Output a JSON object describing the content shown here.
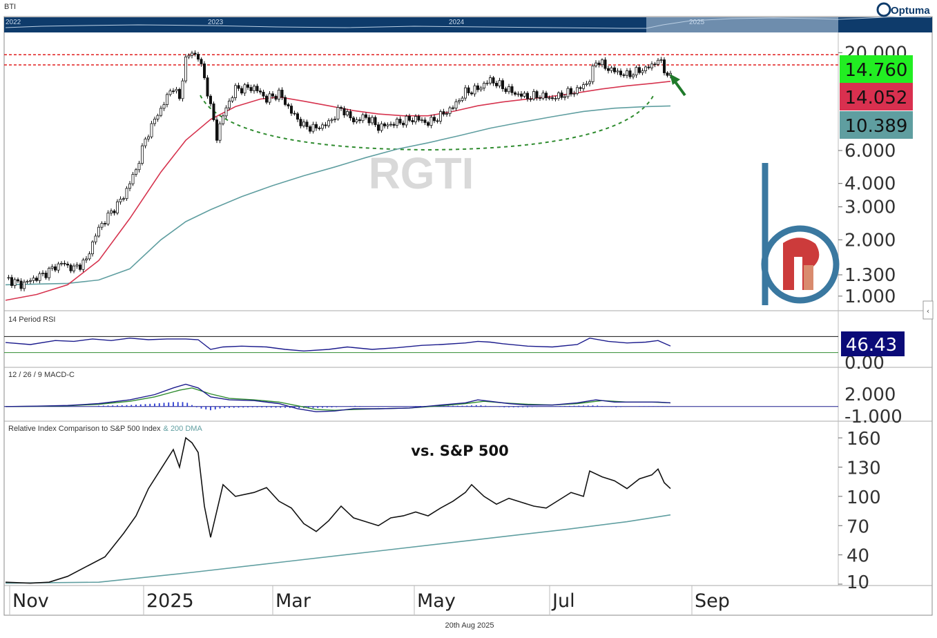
{
  "app": {
    "symbol_label": "BTI",
    "brand": "Optuma",
    "footer_date": "20th Aug 2025"
  },
  "navigator": {
    "year_labels": [
      "2022",
      "2023",
      "2024",
      "2025"
    ]
  },
  "colors": {
    "price_up": "#ffffff",
    "price_down": "#111111",
    "ma50": "#d6334e",
    "ma200": "#5f9ea0",
    "resistance": "#e01b1b",
    "cup": "#2e8b2e",
    "arrow": "#1f7a2a",
    "rsi": "#1a1a8c",
    "macd": "#1a1a8c",
    "signal": "#2e8b2e",
    "hist": "#2a3ad0",
    "relative": "#111111",
    "relative_ma": "#5f9ea0",
    "nav_bg": "#0e3b6b",
    "logo_blue": "#3a78a0",
    "logo_red": "#cc3b3b"
  },
  "chart_data": [
    {
      "type": "candlestick",
      "name": "Price",
      "watermark": "RGTI",
      "scale": "log",
      "ylim": [
        0.85,
        25
      ],
      "y_ticks": [
        "20.000",
        "6.000",
        "4.000",
        "3.000",
        "2.000",
        "1.300",
        "1.000"
      ],
      "price_badges": [
        {
          "label": "14.760",
          "color": "#22ee22"
        },
        {
          "label": "14.052",
          "color": "#d9304f"
        },
        {
          "label": "10.389",
          "color": "#5f9ea0"
        }
      ],
      "resistance_levels": [
        19.5,
        17.2
      ],
      "x_ticks": [
        "Nov",
        "2025",
        "Mar",
        "May",
        "Jul",
        "Sep"
      ],
      "close_path": [
        [
          0,
          1.25
        ],
        [
          5,
          1.15
        ],
        [
          12,
          1.3
        ],
        [
          18,
          1.5
        ],
        [
          22,
          1.4
        ],
        [
          26,
          1.55
        ],
        [
          30,
          2.3
        ],
        [
          34,
          2.8
        ],
        [
          38,
          3.4
        ],
        [
          42,
          4.7
        ],
        [
          46,
          7.5
        ],
        [
          50,
          10.0
        ],
        [
          54,
          13.2
        ],
        [
          56,
          11.2
        ],
        [
          58,
          18.5
        ],
        [
          60,
          20.0
        ],
        [
          62,
          19.0
        ],
        [
          66,
          10.2
        ],
        [
          68,
          7.1
        ],
        [
          70,
          9.2
        ],
        [
          74,
          12.8
        ],
        [
          80,
          13.0
        ],
        [
          84,
          11.3
        ],
        [
          88,
          12.1
        ],
        [
          92,
          9.6
        ],
        [
          96,
          8.1
        ],
        [
          100,
          7.9
        ],
        [
          104,
          8.4
        ],
        [
          108,
          10.1
        ],
        [
          112,
          8.6
        ],
        [
          116,
          9.1
        ],
        [
          120,
          8.0
        ],
        [
          124,
          8.3
        ],
        [
          128,
          8.6
        ],
        [
          132,
          8.9
        ],
        [
          136,
          8.4
        ],
        [
          140,
          9.2
        ],
        [
          144,
          10.2
        ],
        [
          148,
          12.3
        ],
        [
          152,
          12.8
        ],
        [
          156,
          14.3
        ],
        [
          160,
          13.1
        ],
        [
          164,
          12.1
        ],
        [
          168,
          11.6
        ],
        [
          172,
          11.8
        ],
        [
          176,
          11.4
        ],
        [
          180,
          12.0
        ],
        [
          184,
          12.6
        ],
        [
          188,
          14.2
        ],
        [
          190,
          18.2
        ],
        [
          194,
          16.4
        ],
        [
          198,
          15.5
        ],
        [
          200,
          15.2
        ],
        [
          204,
          16.0
        ],
        [
          208,
          17.0
        ],
        [
          210,
          18.5
        ],
        [
          212,
          16.2
        ],
        [
          214,
          14.76
        ]
      ],
      "ma50_path": [
        [
          0,
          0.95
        ],
        [
          10,
          1.02
        ],
        [
          20,
          1.15
        ],
        [
          30,
          1.55
        ],
        [
          40,
          2.6
        ],
        [
          50,
          4.6
        ],
        [
          58,
          6.8
        ],
        [
          66,
          8.8
        ],
        [
          74,
          10.3
        ],
        [
          82,
          11.3
        ],
        [
          88,
          11.6
        ],
        [
          96,
          11.0
        ],
        [
          104,
          10.4
        ],
        [
          112,
          9.8
        ],
        [
          120,
          9.4
        ],
        [
          128,
          9.2
        ],
        [
          136,
          9.2
        ],
        [
          144,
          9.7
        ],
        [
          152,
          10.4
        ],
        [
          160,
          10.9
        ],
        [
          168,
          11.3
        ],
        [
          176,
          11.7
        ],
        [
          184,
          12.2
        ],
        [
          192,
          12.8
        ],
        [
          200,
          13.3
        ],
        [
          208,
          13.7
        ],
        [
          214,
          14.052
        ]
      ],
      "ma200_path": [
        [
          0,
          1.15
        ],
        [
          20,
          1.17
        ],
        [
          30,
          1.22
        ],
        [
          40,
          1.4
        ],
        [
          50,
          2.0
        ],
        [
          58,
          2.5
        ],
        [
          66,
          2.9
        ],
        [
          76,
          3.4
        ],
        [
          86,
          3.9
        ],
        [
          96,
          4.4
        ],
        [
          106,
          4.9
        ],
        [
          116,
          5.5
        ],
        [
          126,
          6.1
        ],
        [
          136,
          6.6
        ],
        [
          146,
          7.2
        ],
        [
          156,
          7.9
        ],
        [
          166,
          8.5
        ],
        [
          176,
          9.1
        ],
        [
          186,
          9.7
        ],
        [
          196,
          10.1
        ],
        [
          206,
          10.3
        ],
        [
          214,
          10.389
        ]
      ]
    },
    {
      "type": "line",
      "name": "14 Period RSI",
      "series_name": "RSI",
      "ylim": [
        0,
        100
      ],
      "y_ticks": [
        "0.00"
      ],
      "badge": "46.43",
      "upper_level": 70,
      "lower_level": 30,
      "path": [
        [
          0,
          55
        ],
        [
          8,
          50
        ],
        [
          16,
          60
        ],
        [
          22,
          58
        ],
        [
          28,
          64
        ],
        [
          34,
          60
        ],
        [
          40,
          66
        ],
        [
          46,
          62
        ],
        [
          52,
          64
        ],
        [
          58,
          64
        ],
        [
          62,
          62
        ],
        [
          66,
          38
        ],
        [
          70,
          44
        ],
        [
          76,
          46
        ],
        [
          84,
          44
        ],
        [
          90,
          38
        ],
        [
          96,
          34
        ],
        [
          104,
          38
        ],
        [
          110,
          44
        ],
        [
          118,
          38
        ],
        [
          126,
          42
        ],
        [
          134,
          48
        ],
        [
          140,
          50
        ],
        [
          148,
          54
        ],
        [
          152,
          58
        ],
        [
          156,
          56
        ],
        [
          160,
          52
        ],
        [
          168,
          46
        ],
        [
          176,
          44
        ],
        [
          184,
          50
        ],
        [
          188,
          66
        ],
        [
          194,
          58
        ],
        [
          200,
          54
        ],
        [
          206,
          56
        ],
        [
          210,
          60
        ],
        [
          214,
          46.43
        ]
      ]
    },
    {
      "type": "line",
      "name": "12 / 26 / 9 MACD-C",
      "ylim": [
        -1.6,
        3.6
      ],
      "y_ticks": [
        "2.000",
        "-1.000"
      ],
      "macd_path": [
        [
          0,
          0.0
        ],
        [
          10,
          0.05
        ],
        [
          20,
          0.15
        ],
        [
          30,
          0.4
        ],
        [
          40,
          0.9
        ],
        [
          48,
          1.6
        ],
        [
          54,
          2.5
        ],
        [
          58,
          3.0
        ],
        [
          62,
          2.5
        ],
        [
          66,
          1.3
        ],
        [
          72,
          0.9
        ],
        [
          80,
          0.8
        ],
        [
          88,
          0.4
        ],
        [
          94,
          -0.3
        ],
        [
          100,
          -0.7
        ],
        [
          106,
          -0.6
        ],
        [
          112,
          -0.3
        ],
        [
          120,
          -0.3
        ],
        [
          130,
          -0.2
        ],
        [
          140,
          0.2
        ],
        [
          148,
          0.5
        ],
        [
          152,
          0.9
        ],
        [
          156,
          0.7
        ],
        [
          162,
          0.4
        ],
        [
          168,
          0.2
        ],
        [
          176,
          0.2
        ],
        [
          184,
          0.5
        ],
        [
          190,
          0.9
        ],
        [
          196,
          0.6
        ],
        [
          204,
          0.6
        ],
        [
          210,
          0.6
        ],
        [
          214,
          0.5
        ]
      ],
      "signal_path": [
        [
          0,
          0.0
        ],
        [
          10,
          0.03
        ],
        [
          20,
          0.1
        ],
        [
          30,
          0.3
        ],
        [
          40,
          0.7
        ],
        [
          48,
          1.3
        ],
        [
          56,
          2.2
        ],
        [
          60,
          2.5
        ],
        [
          66,
          1.7
        ],
        [
          72,
          1.1
        ],
        [
          80,
          0.9
        ],
        [
          88,
          0.6
        ],
        [
          94,
          0.1
        ],
        [
          100,
          -0.4
        ],
        [
          106,
          -0.5
        ],
        [
          112,
          -0.4
        ],
        [
          120,
          -0.3
        ],
        [
          130,
          -0.2
        ],
        [
          140,
          0.1
        ],
        [
          148,
          0.4
        ],
        [
          154,
          0.7
        ],
        [
          160,
          0.5
        ],
        [
          168,
          0.3
        ],
        [
          176,
          0.2
        ],
        [
          184,
          0.4
        ],
        [
          192,
          0.8
        ],
        [
          200,
          0.6
        ],
        [
          208,
          0.6
        ],
        [
          214,
          0.5
        ]
      ],
      "hist_path": [
        [
          30,
          0.1
        ],
        [
          40,
          0.2
        ],
        [
          48,
          0.4
        ],
        [
          54,
          0.6
        ],
        [
          58,
          0.6
        ],
        [
          62,
          -0.2
        ],
        [
          66,
          -0.5
        ],
        [
          70,
          -0.2
        ],
        [
          80,
          -0.1
        ],
        [
          94,
          -0.2
        ],
        [
          100,
          -0.2
        ],
        [
          106,
          -0.1
        ],
        [
          112,
          0.1
        ],
        [
          120,
          -0.05
        ],
        [
          130,
          0.05
        ],
        [
          140,
          0.1
        ],
        [
          148,
          0.1
        ],
        [
          152,
          0.2
        ],
        [
          160,
          -0.1
        ],
        [
          168,
          -0.1
        ],
        [
          176,
          0.05
        ],
        [
          184,
          0.1
        ],
        [
          190,
          0.15
        ],
        [
          196,
          -0.1
        ],
        [
          204,
          0.05
        ],
        [
          214,
          0.05
        ]
      ]
    },
    {
      "type": "line",
      "name": "Relative Index Comparison to S&P 500 Index",
      "ma_label": "& 200 DMA",
      "annotation": "vs. S&P 500",
      "ylim": [
        10,
        170
      ],
      "y_ticks": [
        "160",
        "130",
        "100",
        "70",
        "40",
        "10"
      ],
      "path": [
        [
          0,
          12
        ],
        [
          8,
          11
        ],
        [
          14,
          12
        ],
        [
          20,
          18
        ],
        [
          26,
          28
        ],
        [
          32,
          38
        ],
        [
          38,
          62
        ],
        [
          42,
          80
        ],
        [
          46,
          108
        ],
        [
          50,
          128
        ],
        [
          54,
          148
        ],
        [
          56,
          130
        ],
        [
          58,
          160
        ],
        [
          60,
          155
        ],
        [
          62,
          145
        ],
        [
          64,
          90
        ],
        [
          66,
          58
        ],
        [
          68,
          85
        ],
        [
          70,
          112
        ],
        [
          74,
          100
        ],
        [
          80,
          104
        ],
        [
          84,
          109
        ],
        [
          88,
          95
        ],
        [
          92,
          88
        ],
        [
          96,
          72
        ],
        [
          100,
          64
        ],
        [
          104,
          75
        ],
        [
          108,
          90
        ],
        [
          112,
          78
        ],
        [
          116,
          74
        ],
        [
          120,
          70
        ],
        [
          124,
          78
        ],
        [
          128,
          80
        ],
        [
          132,
          84
        ],
        [
          136,
          80
        ],
        [
          140,
          88
        ],
        [
          144,
          95
        ],
        [
          148,
          104
        ],
        [
          150,
          112
        ],
        [
          154,
          100
        ],
        [
          158,
          92
        ],
        [
          162,
          98
        ],
        [
          166,
          94
        ],
        [
          170,
          90
        ],
        [
          174,
          88
        ],
        [
          178,
          96
        ],
        [
          182,
          104
        ],
        [
          186,
          100
        ],
        [
          188,
          126
        ],
        [
          192,
          120
        ],
        [
          196,
          116
        ],
        [
          200,
          108
        ],
        [
          204,
          118
        ],
        [
          208,
          122
        ],
        [
          210,
          128
        ],
        [
          212,
          114
        ],
        [
          214,
          108
        ]
      ],
      "ma_path": [
        [
          0,
          11
        ],
        [
          30,
          12
        ],
        [
          60,
          22
        ],
        [
          90,
          33
        ],
        [
          120,
          44
        ],
        [
          150,
          55
        ],
        [
          180,
          66
        ],
        [
          200,
          74
        ],
        [
          214,
          81
        ]
      ]
    }
  ]
}
